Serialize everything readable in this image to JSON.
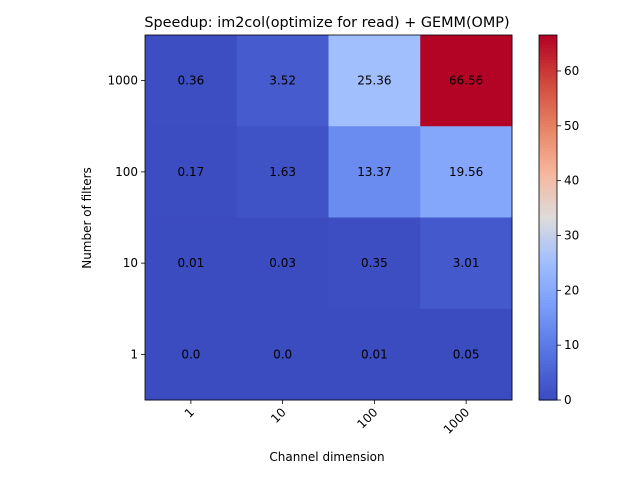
{
  "chart_data": {
    "type": "heatmap",
    "title": "Speedup: im2col(optimize for read) + GEMM(OMP)",
    "xlabel": "Channel dimension",
    "ylabel": "Number of filters",
    "x_categories": [
      "1",
      "10",
      "100",
      "1000"
    ],
    "y_categories": [
      "1000",
      "100",
      "10",
      "1"
    ],
    "values": [
      [
        0.36,
        3.52,
        25.36,
        66.56
      ],
      [
        0.17,
        1.63,
        13.37,
        19.56
      ],
      [
        0.01,
        0.03,
        0.35,
        3.01
      ],
      [
        0.0,
        0.0,
        0.01,
        0.05
      ]
    ],
    "cell_labels": [
      [
        "0.36",
        "3.52",
        "25.36",
        "66.56"
      ],
      [
        "0.17",
        "1.63",
        "13.37",
        "19.56"
      ],
      [
        "0.01",
        "0.03",
        "0.35",
        "3.01"
      ],
      [
        "0.0",
        "0.0",
        "0.01",
        "0.05"
      ]
    ],
    "colormap": "coolwarm",
    "color_range": [
      0,
      66.56
    ],
    "colorbar_ticks": [
      "0",
      "10",
      "20",
      "30",
      "40",
      "50",
      "60"
    ],
    "colorbar_tick_values": [
      0,
      10,
      20,
      30,
      40,
      50,
      60
    ],
    "colorbar_placement": "right",
    "x_tick_rotation": 45,
    "grid": false
  }
}
